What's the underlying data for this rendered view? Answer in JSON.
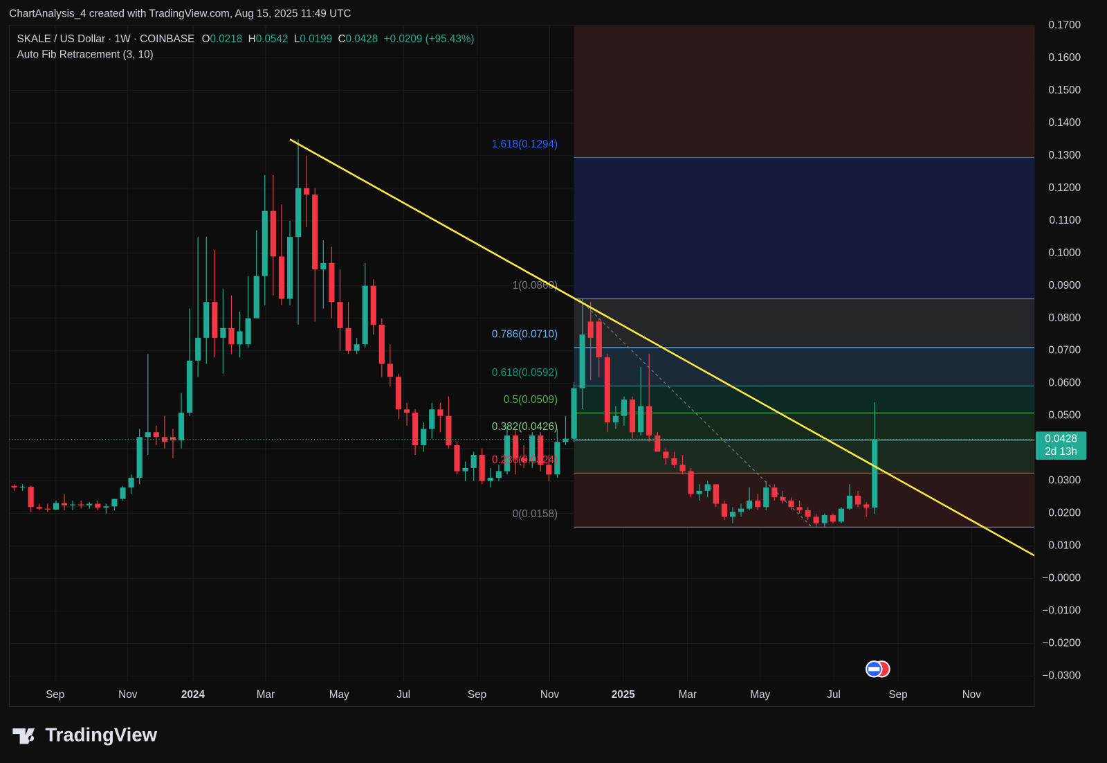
{
  "credit": "ChartAnalysis_4 created with TradingView.com, Aug 15, 2025 11:49 UTC",
  "logo": "TradingView",
  "chart_data": {
    "type": "candlestick",
    "title": "SKALE / US Dollar · 1W · COINBASE",
    "legend_ohlc": [
      {
        "key": "O",
        "value": "0.0218"
      },
      {
        "key": "H",
        "value": "0.0542"
      },
      {
        "key": "L",
        "value": "0.0199"
      },
      {
        "key": "C",
        "value": "0.0428"
      }
    ],
    "change": "+0.0209 (+95.43%)",
    "subtitle": "Auto Fib Retracement (3, 10)",
    "countdown": "2d 13h",
    "up_color": "#22ab94",
    "down_color": "#f23645",
    "xlim": [
      -0.6,
      122.1
    ],
    "xticks": [
      {
        "value": 4.9,
        "label": "Sep"
      },
      {
        "value": 13.6,
        "label": "Nov"
      },
      {
        "value": 21.4,
        "label": "2024"
      },
      {
        "value": 30.1,
        "label": "Mar"
      },
      {
        "value": 38.9,
        "label": "May"
      },
      {
        "value": 46.6,
        "label": "Jul"
      },
      {
        "value": 55.4,
        "label": "Sep"
      },
      {
        "value": 64.1,
        "label": "Nov"
      },
      {
        "value": 72.9,
        "label": "2025"
      },
      {
        "value": 80.6,
        "label": "Mar"
      },
      {
        "value": 89.3,
        "label": "May"
      },
      {
        "value": 98.1,
        "label": "Jul"
      },
      {
        "value": 105.8,
        "label": "Sep"
      },
      {
        "value": 114.6,
        "label": "Nov"
      }
    ],
    "ylim": [
      -0.0317,
      0.17
    ],
    "yticks": [
      {
        "value": 0.17,
        "label": "0.1700"
      },
      {
        "value": 0.16,
        "label": "0.1600"
      },
      {
        "value": 0.15,
        "label": "0.1500"
      },
      {
        "value": 0.14,
        "label": "0.1400"
      },
      {
        "value": 0.13,
        "label": "0.1300"
      },
      {
        "value": 0.12,
        "label": "0.1200"
      },
      {
        "value": 0.11,
        "label": "0.1100"
      },
      {
        "value": 0.1,
        "label": "0.1000"
      },
      {
        "value": 0.09,
        "label": "0.0900"
      },
      {
        "value": 0.08,
        "label": "0.0800"
      },
      {
        "value": 0.07,
        "label": "0.0700"
      },
      {
        "value": 0.06,
        "label": "0.0600"
      },
      {
        "value": 0.05,
        "label": "0.0500"
      },
      {
        "value": 0.04,
        "label": "0.0400"
      },
      {
        "value": 0.03,
        "label": "0.0300"
      },
      {
        "value": 0.02,
        "label": "0.0200"
      },
      {
        "value": 0.01,
        "label": "0.0100"
      },
      {
        "value": 0,
        "label": "−0.0000"
      },
      {
        "value": -0.01,
        "label": "−0.0100"
      },
      {
        "value": -0.02,
        "label": "−0.0200"
      },
      {
        "value": -0.03,
        "label": "−0.0300"
      }
    ],
    "grid": true,
    "ohlc": [
      [
        0.0285,
        0.029,
        0.027,
        0.028
      ],
      [
        0.028,
        0.029,
        0.027,
        0.0282
      ],
      [
        0.0282,
        0.0285,
        0.0205,
        0.022
      ],
      [
        0.022,
        0.023,
        0.021,
        0.0215
      ],
      [
        0.0215,
        0.023,
        0.0205,
        0.0212
      ],
      [
        0.0212,
        0.024,
        0.021,
        0.0232
      ],
      [
        0.0232,
        0.026,
        0.021,
        0.0225
      ],
      [
        0.0225,
        0.024,
        0.021,
        0.0228
      ],
      [
        0.0228,
        0.024,
        0.0215,
        0.0225
      ],
      [
        0.0225,
        0.0235,
        0.0215,
        0.023
      ],
      [
        0.023,
        0.024,
        0.021,
        0.0218
      ],
      [
        0.0218,
        0.023,
        0.02,
        0.0222
      ],
      [
        0.0222,
        0.0245,
        0.021,
        0.0245
      ],
      [
        0.0245,
        0.0285,
        0.024,
        0.028
      ],
      [
        0.028,
        0.032,
        0.026,
        0.031
      ],
      [
        0.031,
        0.046,
        0.029,
        0.0435
      ],
      [
        0.0435,
        0.069,
        0.038,
        0.045
      ],
      [
        0.045,
        0.047,
        0.041,
        0.0435
      ],
      [
        0.0435,
        0.05,
        0.04,
        0.042
      ],
      [
        0.0435,
        0.046,
        0.037,
        0.0425
      ],
      [
        0.0425,
        0.057,
        0.04,
        0.051
      ],
      [
        0.051,
        0.083,
        0.05,
        0.067
      ],
      [
        0.067,
        0.105,
        0.062,
        0.074
      ],
      [
        0.074,
        0.105,
        0.066,
        0.085
      ],
      [
        0.085,
        0.101,
        0.068,
        0.074
      ],
      [
        0.074,
        0.089,
        0.063,
        0.077
      ],
      [
        0.077,
        0.087,
        0.069,
        0.072
      ],
      [
        0.072,
        0.082,
        0.068,
        0.076
      ],
      [
        0.072,
        0.093,
        0.071,
        0.08
      ],
      [
        0.08,
        0.107,
        0.08,
        0.093
      ],
      [
        0.093,
        0.124,
        0.084,
        0.113
      ],
      [
        0.113,
        0.124,
        0.087,
        0.099
      ],
      [
        0.099,
        0.115,
        0.084,
        0.086
      ],
      [
        0.086,
        0.11,
        0.084,
        0.105
      ],
      [
        0.105,
        0.135,
        0.078,
        0.12
      ],
      [
        0.12,
        0.13,
        0.108,
        0.118
      ],
      [
        0.118,
        0.12,
        0.079,
        0.095
      ],
      [
        0.095,
        0.104,
        0.083,
        0.097
      ],
      [
        0.097,
        0.102,
        0.08,
        0.085
      ],
      [
        0.085,
        0.095,
        0.07,
        0.077
      ],
      [
        0.077,
        0.085,
        0.069,
        0.07
      ],
      [
        0.07,
        0.074,
        0.069,
        0.072
      ],
      [
        0.072,
        0.097,
        0.071,
        0.09
      ],
      [
        0.09,
        0.092,
        0.075,
        0.078
      ],
      [
        0.078,
        0.08,
        0.062,
        0.066
      ],
      [
        0.066,
        0.072,
        0.059,
        0.062
      ],
      [
        0.062,
        0.063,
        0.049,
        0.052
      ],
      [
        0.052,
        0.054,
        0.047,
        0.051
      ],
      [
        0.051,
        0.052,
        0.038,
        0.041
      ],
      [
        0.041,
        0.048,
        0.039,
        0.046
      ],
      [
        0.046,
        0.054,
        0.043,
        0.052
      ],
      [
        0.052,
        0.054,
        0.045,
        0.05
      ],
      [
        0.05,
        0.056,
        0.04,
        0.041
      ],
      [
        0.041,
        0.042,
        0.032,
        0.033
      ],
      [
        0.033,
        0.036,
        0.03,
        0.034
      ],
      [
        0.034,
        0.039,
        0.03,
        0.038
      ],
      [
        0.038,
        0.04,
        0.029,
        0.03
      ],
      [
        0.03,
        0.034,
        0.028,
        0.031
      ],
      [
        0.031,
        0.035,
        0.03,
        0.033
      ],
      [
        0.033,
        0.047,
        0.032,
        0.044
      ],
      [
        0.044,
        0.046,
        0.032,
        0.037
      ],
      [
        0.037,
        0.041,
        0.034,
        0.036
      ],
      [
        0.036,
        0.045,
        0.034,
        0.044
      ],
      [
        0.044,
        0.045,
        0.033,
        0.035
      ],
      [
        0.035,
        0.038,
        0.03,
        0.032
      ],
      [
        0.032,
        0.046,
        0.031,
        0.042
      ],
      [
        0.042,
        0.05,
        0.041,
        0.043
      ],
      [
        0.043,
        0.06,
        0.042,
        0.0585
      ],
      [
        0.0585,
        0.086,
        0.052,
        0.075
      ],
      [
        0.079,
        0.085,
        0.061,
        0.074
      ],
      [
        0.079,
        0.08,
        0.062,
        0.068
      ],
      [
        0.068,
        0.069,
        0.045,
        0.048
      ],
      [
        0.048,
        0.053,
        0.046,
        0.05
      ],
      [
        0.05,
        0.056,
        0.047,
        0.055
      ],
      [
        0.055,
        0.056,
        0.043,
        0.045
      ],
      [
        0.045,
        0.065,
        0.044,
        0.053
      ],
      [
        0.053,
        0.069,
        0.042,
        0.044
      ],
      [
        0.044,
        0.045,
        0.039,
        0.039
      ],
      [
        0.039,
        0.04,
        0.035,
        0.037
      ],
      [
        0.037,
        0.039,
        0.034,
        0.035
      ],
      [
        0.035,
        0.038,
        0.032,
        0.033
      ],
      [
        0.033,
        0.034,
        0.025,
        0.026
      ],
      [
        0.026,
        0.029,
        0.024,
        0.027
      ],
      [
        0.027,
        0.03,
        0.025,
        0.029
      ],
      [
        0.029,
        0.029,
        0.022,
        0.023
      ],
      [
        0.023,
        0.024,
        0.018,
        0.019
      ],
      [
        0.019,
        0.022,
        0.017,
        0.0205
      ],
      [
        0.0205,
        0.023,
        0.019,
        0.0215
      ],
      [
        0.0215,
        0.028,
        0.021,
        0.024
      ],
      [
        0.024,
        0.026,
        0.021,
        0.022
      ],
      [
        0.022,
        0.03,
        0.021,
        0.028
      ],
      [
        0.028,
        0.029,
        0.024,
        0.025
      ],
      [
        0.025,
        0.027,
        0.023,
        0.024
      ],
      [
        0.024,
        0.025,
        0.021,
        0.022
      ],
      [
        0.022,
        0.024,
        0.02,
        0.021
      ],
      [
        0.021,
        0.022,
        0.018,
        0.019
      ],
      [
        0.019,
        0.02,
        0.016,
        0.017
      ],
      [
        0.017,
        0.02,
        0.016,
        0.0195
      ],
      [
        0.0195,
        0.02,
        0.017,
        0.0175
      ],
      [
        0.0175,
        0.022,
        0.017,
        0.0215
      ],
      [
        0.0215,
        0.029,
        0.021,
        0.0255
      ],
      [
        0.0255,
        0.027,
        0.022,
        0.0228
      ],
      [
        0.0228,
        0.0235,
        0.019,
        0.0218
      ],
      [
        0.0218,
        0.0542,
        0.0199,
        0.0428
      ]
    ],
    "fib_start": 67.0,
    "fib_levels": [
      {
        "label": "1.618(0.1294)",
        "value": 0.1294,
        "color": "#2962ff",
        "fill": "#2c1719"
      },
      {
        "label": "1(0.0860)",
        "value": 0.086,
        "color": "#787b86",
        "fill": "#131a3a"
      },
      {
        "label": "0.786(0.0710)",
        "value": 0.071,
        "color": "#64b5f6",
        "fill": "#242629"
      },
      {
        "label": "0.618(0.0592)",
        "value": 0.0592,
        "color": "#089981",
        "fill": "#1a2a38"
      },
      {
        "label": "0.5(0.0509)",
        "value": 0.0509,
        "color": "#4caf50",
        "fill": "#0d2a26"
      },
      {
        "label": "0.382(0.0426)",
        "value": 0.0426,
        "color": "#81c784",
        "fill": "#162a1b"
      },
      {
        "label": "0.236(0.0324)",
        "value": 0.0324,
        "color": "#f23645",
        "fill": "#1c2b1f"
      },
      {
        "label": "0(0.0158)",
        "value": 0.0158,
        "color": "#787b86",
        "fill": "#2b1618"
      }
    ],
    "trendline": {
      "x": [
        33.0,
        122.1
      ],
      "y": [
        0.135,
        0.0071
      ],
      "color": "#ffeb3b"
    },
    "fib_anchor": {
      "x": [
        67.6,
        95.5
      ],
      "y": [
        0.086,
        0.0158
      ],
      "color": "#787b86"
    }
  }
}
